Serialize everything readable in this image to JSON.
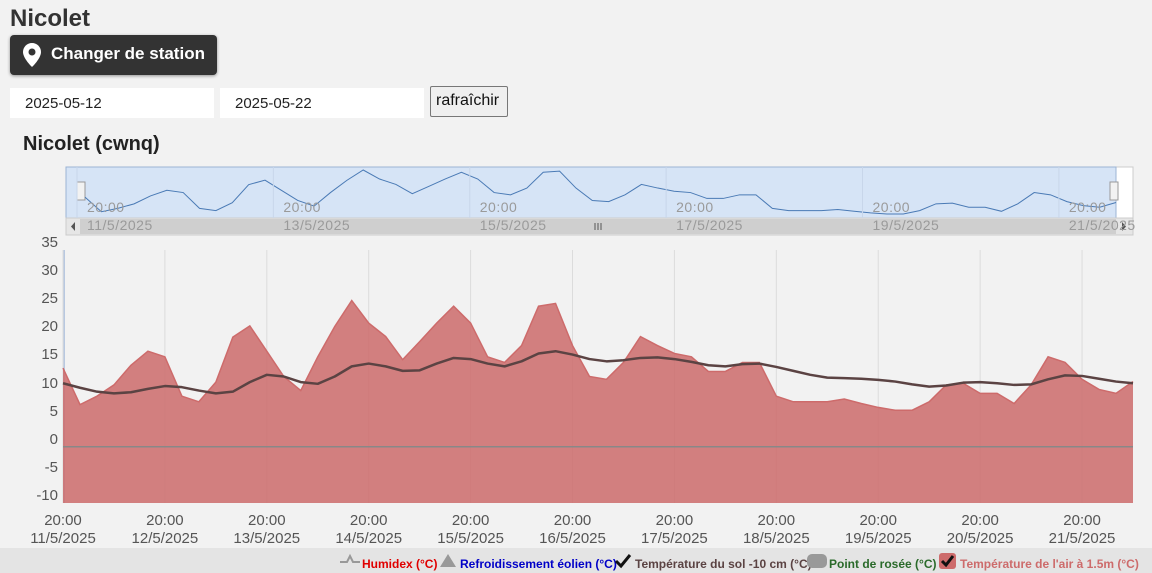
{
  "header": {
    "title": "Nicolet",
    "change_station": "Changer de station"
  },
  "form": {
    "start_date": "2025-05-12",
    "end_date": "2025-05-22",
    "refresh": "rafraîchir"
  },
  "chart_data": {
    "type": "area",
    "title": "Nicolet (cwnq)",
    "x": [
      "2025-05-11T20:00",
      "2025-05-12T00:00",
      "2025-05-12T04:00",
      "2025-05-12T08:00",
      "2025-05-12T12:00",
      "2025-05-12T16:00",
      "2025-05-12T20:00",
      "2025-05-13T00:00",
      "2025-05-13T04:00",
      "2025-05-13T08:00",
      "2025-05-13T12:00",
      "2025-05-13T16:00",
      "2025-05-13T20:00",
      "2025-05-14T00:00",
      "2025-05-14T04:00",
      "2025-05-14T08:00",
      "2025-05-14T12:00",
      "2025-05-14T16:00",
      "2025-05-14T20:00",
      "2025-05-15T00:00",
      "2025-05-15T04:00",
      "2025-05-15T08:00",
      "2025-05-15T12:00",
      "2025-05-15T16:00",
      "2025-05-15T20:00",
      "2025-05-16T00:00",
      "2025-05-16T04:00",
      "2025-05-16T08:00",
      "2025-05-16T12:00",
      "2025-05-16T16:00",
      "2025-05-16T20:00",
      "2025-05-17T00:00",
      "2025-05-17T04:00",
      "2025-05-17T08:00",
      "2025-05-17T12:00",
      "2025-05-17T16:00",
      "2025-05-17T20:00",
      "2025-05-18T00:00",
      "2025-05-18T04:00",
      "2025-05-18T08:00",
      "2025-05-18T12:00",
      "2025-05-18T16:00",
      "2025-05-18T20:00",
      "2025-05-19T00:00",
      "2025-05-19T04:00",
      "2025-05-19T08:00",
      "2025-05-19T12:00",
      "2025-05-19T16:00",
      "2025-05-19T20:00",
      "2025-05-20T00:00",
      "2025-05-20T04:00",
      "2025-05-20T08:00",
      "2025-05-20T12:00",
      "2025-05-20T16:00",
      "2025-05-20T20:00",
      "2025-05-21T00:00",
      "2025-05-21T04:00",
      "2025-05-21T08:00",
      "2025-05-21T12:00",
      "2025-05-21T16:00",
      "2025-05-21T20:00",
      "2025-05-22T00:00",
      "2025-05-22T04:00",
      "2025-05-22T08:00"
    ],
    "series": [
      {
        "name": "Température de l'air à 1.5m (°C)",
        "type": "area",
        "color": "#cd6b6b",
        "values": [
          14,
          7.5,
          9,
          11,
          14.5,
          17,
          16,
          9,
          8,
          11.5,
          19.5,
          21.5,
          17,
          12.5,
          10,
          16,
          21.4,
          26,
          22,
          19.6,
          15.5,
          18.7,
          22,
          25,
          22,
          16,
          15,
          18,
          25,
          25.5,
          18,
          12.5,
          12,
          15,
          19.6,
          18,
          16.6,
          16,
          13.4,
          13.4,
          15,
          15,
          9,
          8,
          8,
          8,
          8.5,
          7.7,
          7,
          6.5,
          6.5,
          8,
          11,
          11.3,
          9.5,
          9.5,
          7.7,
          11,
          16,
          15,
          12,
          10.2,
          9.5,
          11.6
        ]
      },
      {
        "name": "Température du sol -10 cm (°C)",
        "type": "line",
        "color": "#5b4343",
        "values": [
          11.3,
          10.5,
          9.8,
          9.5,
          9.7,
          10.3,
          10.8,
          10.6,
          10,
          9.5,
          9.8,
          11.5,
          12.8,
          12.5,
          11.5,
          11.2,
          12.5,
          14.3,
          14.8,
          14.3,
          13.5,
          13.6,
          14.8,
          15.8,
          15.6,
          14.8,
          14.3,
          15.2,
          16.6,
          17,
          16.4,
          15.6,
          15.2,
          15.4,
          15.8,
          15.9,
          15.6,
          15.1,
          14.5,
          14.3,
          14.7,
          14.8,
          14.2,
          13.5,
          12.8,
          12.3,
          12.2,
          12.1,
          11.9,
          11.6,
          11.1,
          10.7,
          10.9,
          11.4,
          11.5,
          11.3,
          11,
          11.1,
          12,
          12.7,
          12.6,
          12.1,
          11.6,
          11.3
        ]
      }
    ],
    "inactive_series": [
      {
        "name": "Humidex (°C)",
        "color": "#e00000"
      },
      {
        "name": "Refroidissement éolien (°C)",
        "color": "#0000c8"
      },
      {
        "name": "Point de rosée (°C)",
        "color": "#2a6a2a"
      }
    ],
    "xlim": [
      "2025-05-11T20:00",
      "2025-05-22T08:00"
    ],
    "xticks": [
      {
        "value": "2025-05-11T20:00",
        "label": "20:00\n11/5/2025"
      },
      {
        "value": "2025-05-12T20:00",
        "label": "20:00\n12/5/2025"
      },
      {
        "value": "2025-05-13T20:00",
        "label": "20:00\n13/5/2025"
      },
      {
        "value": "2025-05-14T20:00",
        "label": "20:00\n14/5/2025"
      },
      {
        "value": "2025-05-15T20:00",
        "label": "20:00\n15/5/2025"
      },
      {
        "value": "2025-05-16T20:00",
        "label": "20:00\n16/5/2025"
      },
      {
        "value": "2025-05-17T20:00",
        "label": "20:00\n17/5/2025"
      },
      {
        "value": "2025-05-18T20:00",
        "label": "20:00\n18/5/2025"
      },
      {
        "value": "2025-05-19T20:00",
        "label": "20:00\n19/5/2025"
      },
      {
        "value": "2025-05-20T20:00",
        "label": "20:00\n20/5/2025"
      },
      {
        "value": "2025-05-21T20:00",
        "label": "20:00\n21/5/2025"
      }
    ],
    "ylim": [
      -10,
      35
    ],
    "yticks": [
      -10,
      -5,
      0,
      5,
      10,
      15,
      20,
      25,
      30,
      35
    ],
    "grid": "x",
    "navigator": {
      "xticks": [
        {
          "value": "2025-05-11T20:00",
          "label": "20:00\n11/5/2025"
        },
        {
          "value": "2025-05-13T20:00",
          "label": "20:00\n13/5/2025"
        },
        {
          "value": "2025-05-15T20:00",
          "label": "20:00\n15/5/2025"
        },
        {
          "value": "2025-05-17T20:00",
          "label": "20:00\n17/5/2025"
        },
        {
          "value": "2025-05-19T20:00",
          "label": "20:00\n19/5/2025"
        },
        {
          "value": "2025-05-21T20:00",
          "label": "20:00\n21/5/2025"
        }
      ]
    }
  }
}
